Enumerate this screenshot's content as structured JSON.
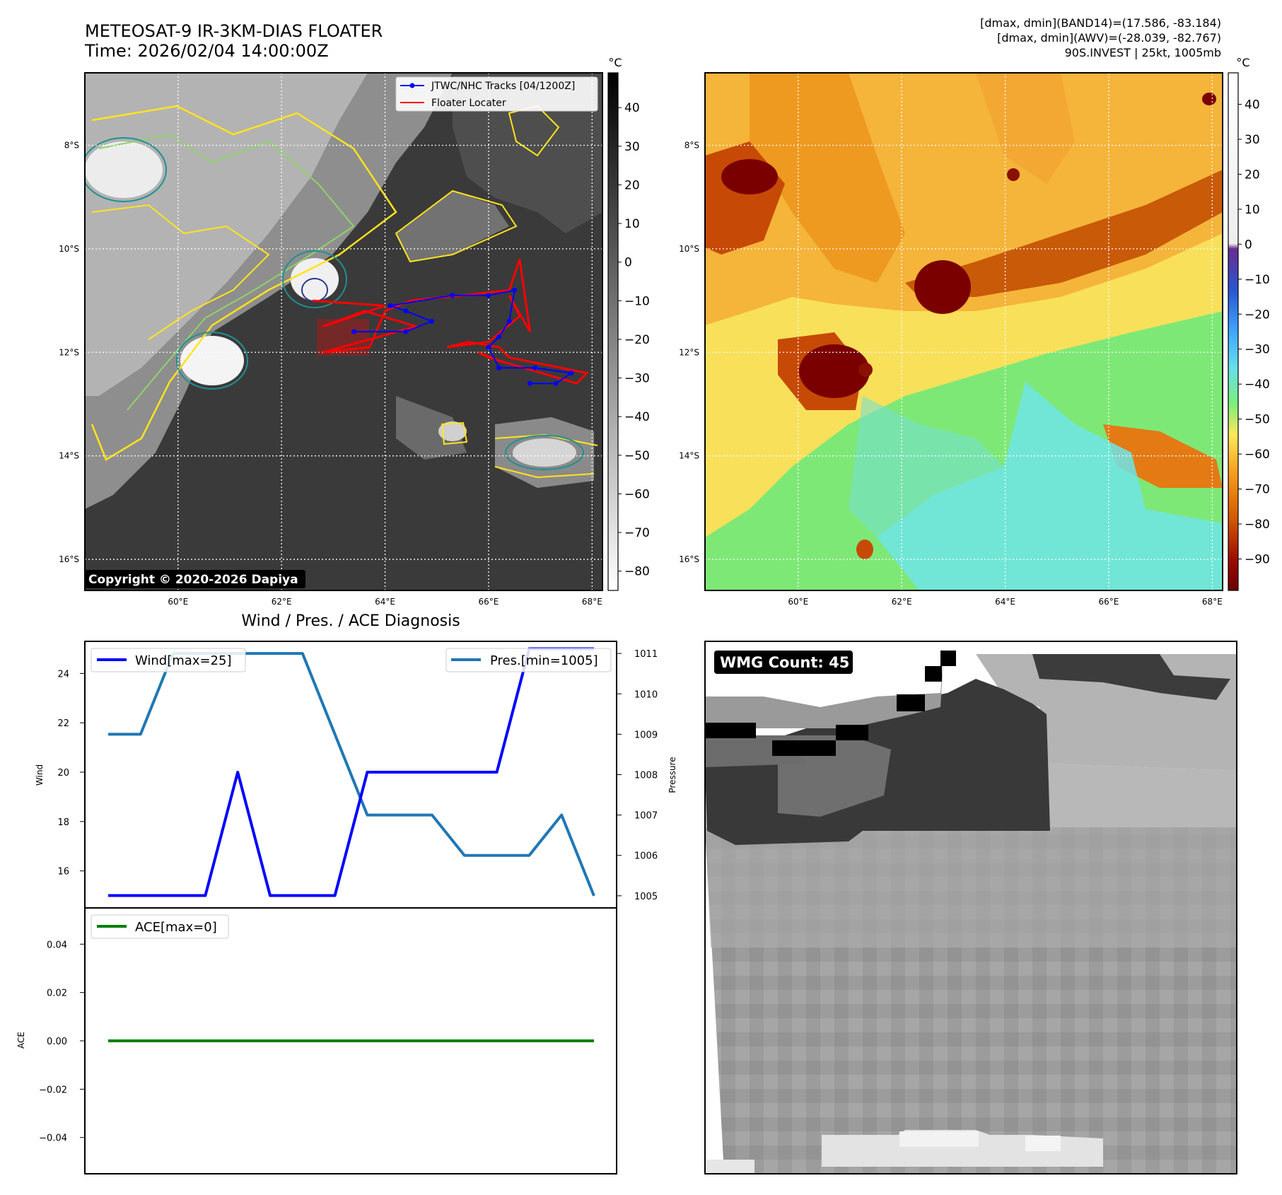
{
  "header": {
    "title_line1": "METEOSAT-9 IR-3KM-DIAS FLOATER",
    "title_line2": "Time: 2026/02/04 14:00:00Z",
    "info_line1": "[dmax, dmin](BAND14)=(17.586, -83.184)",
    "info_line2": "[dmax, dmin](AWV)=(-28.039, -82.767)",
    "info_line3": "90S.INVEST | 25kt, 1005mb"
  },
  "map": {
    "lat_labels": [
      "8°S",
      "10°S",
      "12°S",
      "14°S",
      "16°S"
    ],
    "lat_values": [
      -8,
      -10,
      -12,
      -14,
      -16
    ],
    "lon_labels": [
      "60°E",
      "62°E",
      "64°E",
      "66°E",
      "68°E"
    ],
    "lon_values": [
      60,
      62,
      64,
      66,
      68
    ],
    "lon_range": [
      58.2,
      68.2
    ],
    "lat_range": [
      -6.6,
      -16.6
    ],
    "legend_track": "JTWC/NHC Tracks [04/1200Z]",
    "legend_floater": "Floater Locater",
    "copyright": "Copyright © 2020-2026 Dapiya",
    "track_color": "#0000ff",
    "floater_color": "#ff0000",
    "track_points": [
      [
        63.4,
        -11.6
      ],
      [
        64.4,
        -11.6
      ],
      [
        64.9,
        -11.4
      ],
      [
        64.4,
        -11.2
      ],
      [
        64.1,
        -11.1
      ],
      [
        65.3,
        -10.9
      ],
      [
        66.0,
        -10.9
      ],
      [
        66.5,
        -10.8
      ],
      [
        66.4,
        -11.4
      ],
      [
        66.2,
        -11.7
      ],
      [
        66.0,
        -11.9
      ],
      [
        66.2,
        -12.3
      ],
      [
        66.9,
        -12.3
      ],
      [
        67.6,
        -12.4
      ],
      [
        67.3,
        -12.6
      ],
      [
        66.8,
        -12.6
      ]
    ],
    "floater_points": [
      [
        62.6,
        -11.0
      ],
      [
        64.0,
        -11.1
      ],
      [
        62.8,
        -11.5
      ],
      [
        63.6,
        -11.2
      ],
      [
        64.6,
        -11.5
      ],
      [
        62.8,
        -12.0
      ],
      [
        63.7,
        -11.9
      ],
      [
        64.0,
        -11.2
      ],
      [
        64.5,
        -11.0
      ],
      [
        65.5,
        -10.9
      ],
      [
        66.4,
        -10.8
      ],
      [
        66.6,
        -10.2
      ],
      [
        66.8,
        -11.6
      ],
      [
        66.4,
        -10.9
      ],
      [
        66.6,
        -11.3
      ],
      [
        66.0,
        -11.8
      ],
      [
        65.2,
        -11.9
      ],
      [
        65.6,
        -11.8
      ],
      [
        66.2,
        -11.9
      ],
      [
        66.4,
        -12.1
      ],
      [
        67.9,
        -12.4
      ],
      [
        67.7,
        -12.6
      ],
      [
        66.0,
        -12.1
      ],
      [
        65.8,
        -12.0
      ],
      [
        66.3,
        -12.2
      ]
    ]
  },
  "colorbar_gray": {
    "unit": "°C",
    "ticks": [
      "40",
      "30",
      "20",
      "10",
      "0",
      "−10",
      "−20",
      "−30",
      "−40",
      "−50",
      "−60",
      "−70",
      "−80"
    ],
    "tick_values": [
      40,
      30,
      20,
      10,
      0,
      -10,
      -20,
      -30,
      -40,
      -50,
      -60,
      -70,
      -80
    ],
    "range": [
      49,
      -85
    ]
  },
  "colorbar_awv": {
    "unit": "°C",
    "ticks": [
      "40",
      "30",
      "20",
      "10",
      "0",
      "−10",
      "−20",
      "−30",
      "−40",
      "−50",
      "−60",
      "−70",
      "−80",
      "−90"
    ],
    "tick_values": [
      40,
      30,
      20,
      10,
      0,
      -10,
      -20,
      -30,
      -40,
      -50,
      -60,
      -70,
      -80,
      -90
    ],
    "range": [
      49,
      -99
    ]
  },
  "diagnosis": {
    "title": "Wind / Pres. / ACE Diagnosis",
    "wind_label": "Wind",
    "pressure_label": "Pressure",
    "ace_label": "ACE",
    "legend_wind": "Wind[max=25]",
    "legend_pres": "Pres.[min=1005]",
    "legend_ace": "ACE[max=0]",
    "wind_color": "#0000ff",
    "pres_color": "#1f77b4",
    "ace_color": "#008000"
  },
  "chart_data": [
    {
      "type": "line",
      "title": "Wind / Pres. / ACE Diagnosis",
      "x": [
        0,
        1,
        2,
        3,
        4,
        5,
        6,
        7,
        8,
        9,
        10,
        11,
        12,
        13,
        14,
        15
      ],
      "series": [
        {
          "name": "Wind[max=25]",
          "axis": "left",
          "values": [
            15,
            15,
            15,
            15,
            20,
            15,
            15,
            15,
            20,
            20,
            20,
            20,
            20,
            25,
            25,
            25
          ]
        },
        {
          "name": "Pres.[min=1005]",
          "axis": "right",
          "values": [
            1009,
            1009,
            1011,
            1011,
            1011,
            1011,
            1011,
            1009,
            1007,
            1007,
            1007,
            1006,
            1006,
            1006,
            1007,
            1005
          ]
        }
      ],
      "ylabel": "Wind",
      "ylabel_right": "Pressure",
      "ylim": [
        14.5,
        25.3
      ],
      "ylim_right": [
        1004.7,
        1011.3
      ],
      "yticks": [
        16,
        18,
        20,
        22,
        24
      ],
      "yticks_right": [
        1005,
        1006,
        1007,
        1008,
        1009,
        1010,
        1011
      ]
    },
    {
      "type": "line",
      "x": [
        0,
        1,
        2,
        3,
        4,
        5,
        6,
        7,
        8,
        9,
        10,
        11,
        12,
        13,
        14,
        15
      ],
      "series": [
        {
          "name": "ACE[max=0]",
          "values": [
            0,
            0,
            0,
            0,
            0,
            0,
            0,
            0,
            0,
            0,
            0,
            0,
            0,
            0,
            0,
            0
          ]
        }
      ],
      "ylabel": "ACE",
      "ylim": [
        -0.055,
        0.055
      ],
      "yticks": [
        -0.04,
        -0.02,
        0.0,
        0.02,
        0.04
      ],
      "ytick_labels": [
        "−0.04",
        "−0.02",
        "0.00",
        "0.02",
        "0.04"
      ]
    }
  ],
  "wmg": {
    "label": "WMG Count: 45"
  }
}
